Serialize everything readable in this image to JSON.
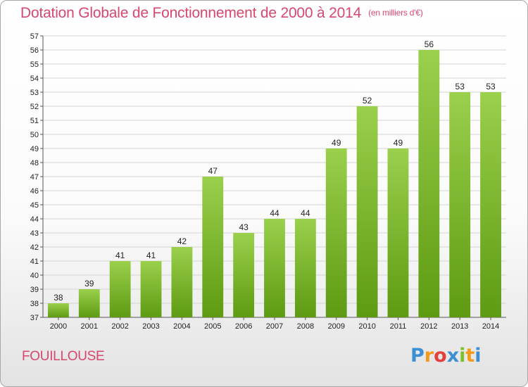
{
  "header": {
    "title": "Dotation Globale de Fonctionnement de 2000 à 2014",
    "subtitle": "(en milliers d'€)"
  },
  "footer": {
    "commune": "FOUILLOUSE",
    "logo_letters": [
      "P",
      "r",
      "o",
      "x",
      "i",
      "t",
      "i"
    ]
  },
  "colors": {
    "title": "#d7476e",
    "bar_light": "#9ad04c",
    "bar_dark": "#5e9a12",
    "grid": "#d4d4d4"
  },
  "chart_data": {
    "type": "bar",
    "categories": [
      "2000",
      "2001",
      "2002",
      "2003",
      "2004",
      "2005",
      "2006",
      "2007",
      "2008",
      "2009",
      "2010",
      "2011",
      "2012",
      "2013",
      "2014"
    ],
    "values": [
      38,
      39,
      41,
      41,
      42,
      47,
      43,
      44,
      44,
      49,
      52,
      49,
      56,
      53,
      53
    ],
    "ylim": [
      37,
      57
    ],
    "yticks": [
      37,
      38,
      39,
      40,
      41,
      42,
      43,
      44,
      45,
      46,
      47,
      48,
      49,
      50,
      51,
      52,
      53,
      54,
      55,
      56,
      57
    ],
    "grid": true,
    "xlabel": "",
    "ylabel": ""
  }
}
